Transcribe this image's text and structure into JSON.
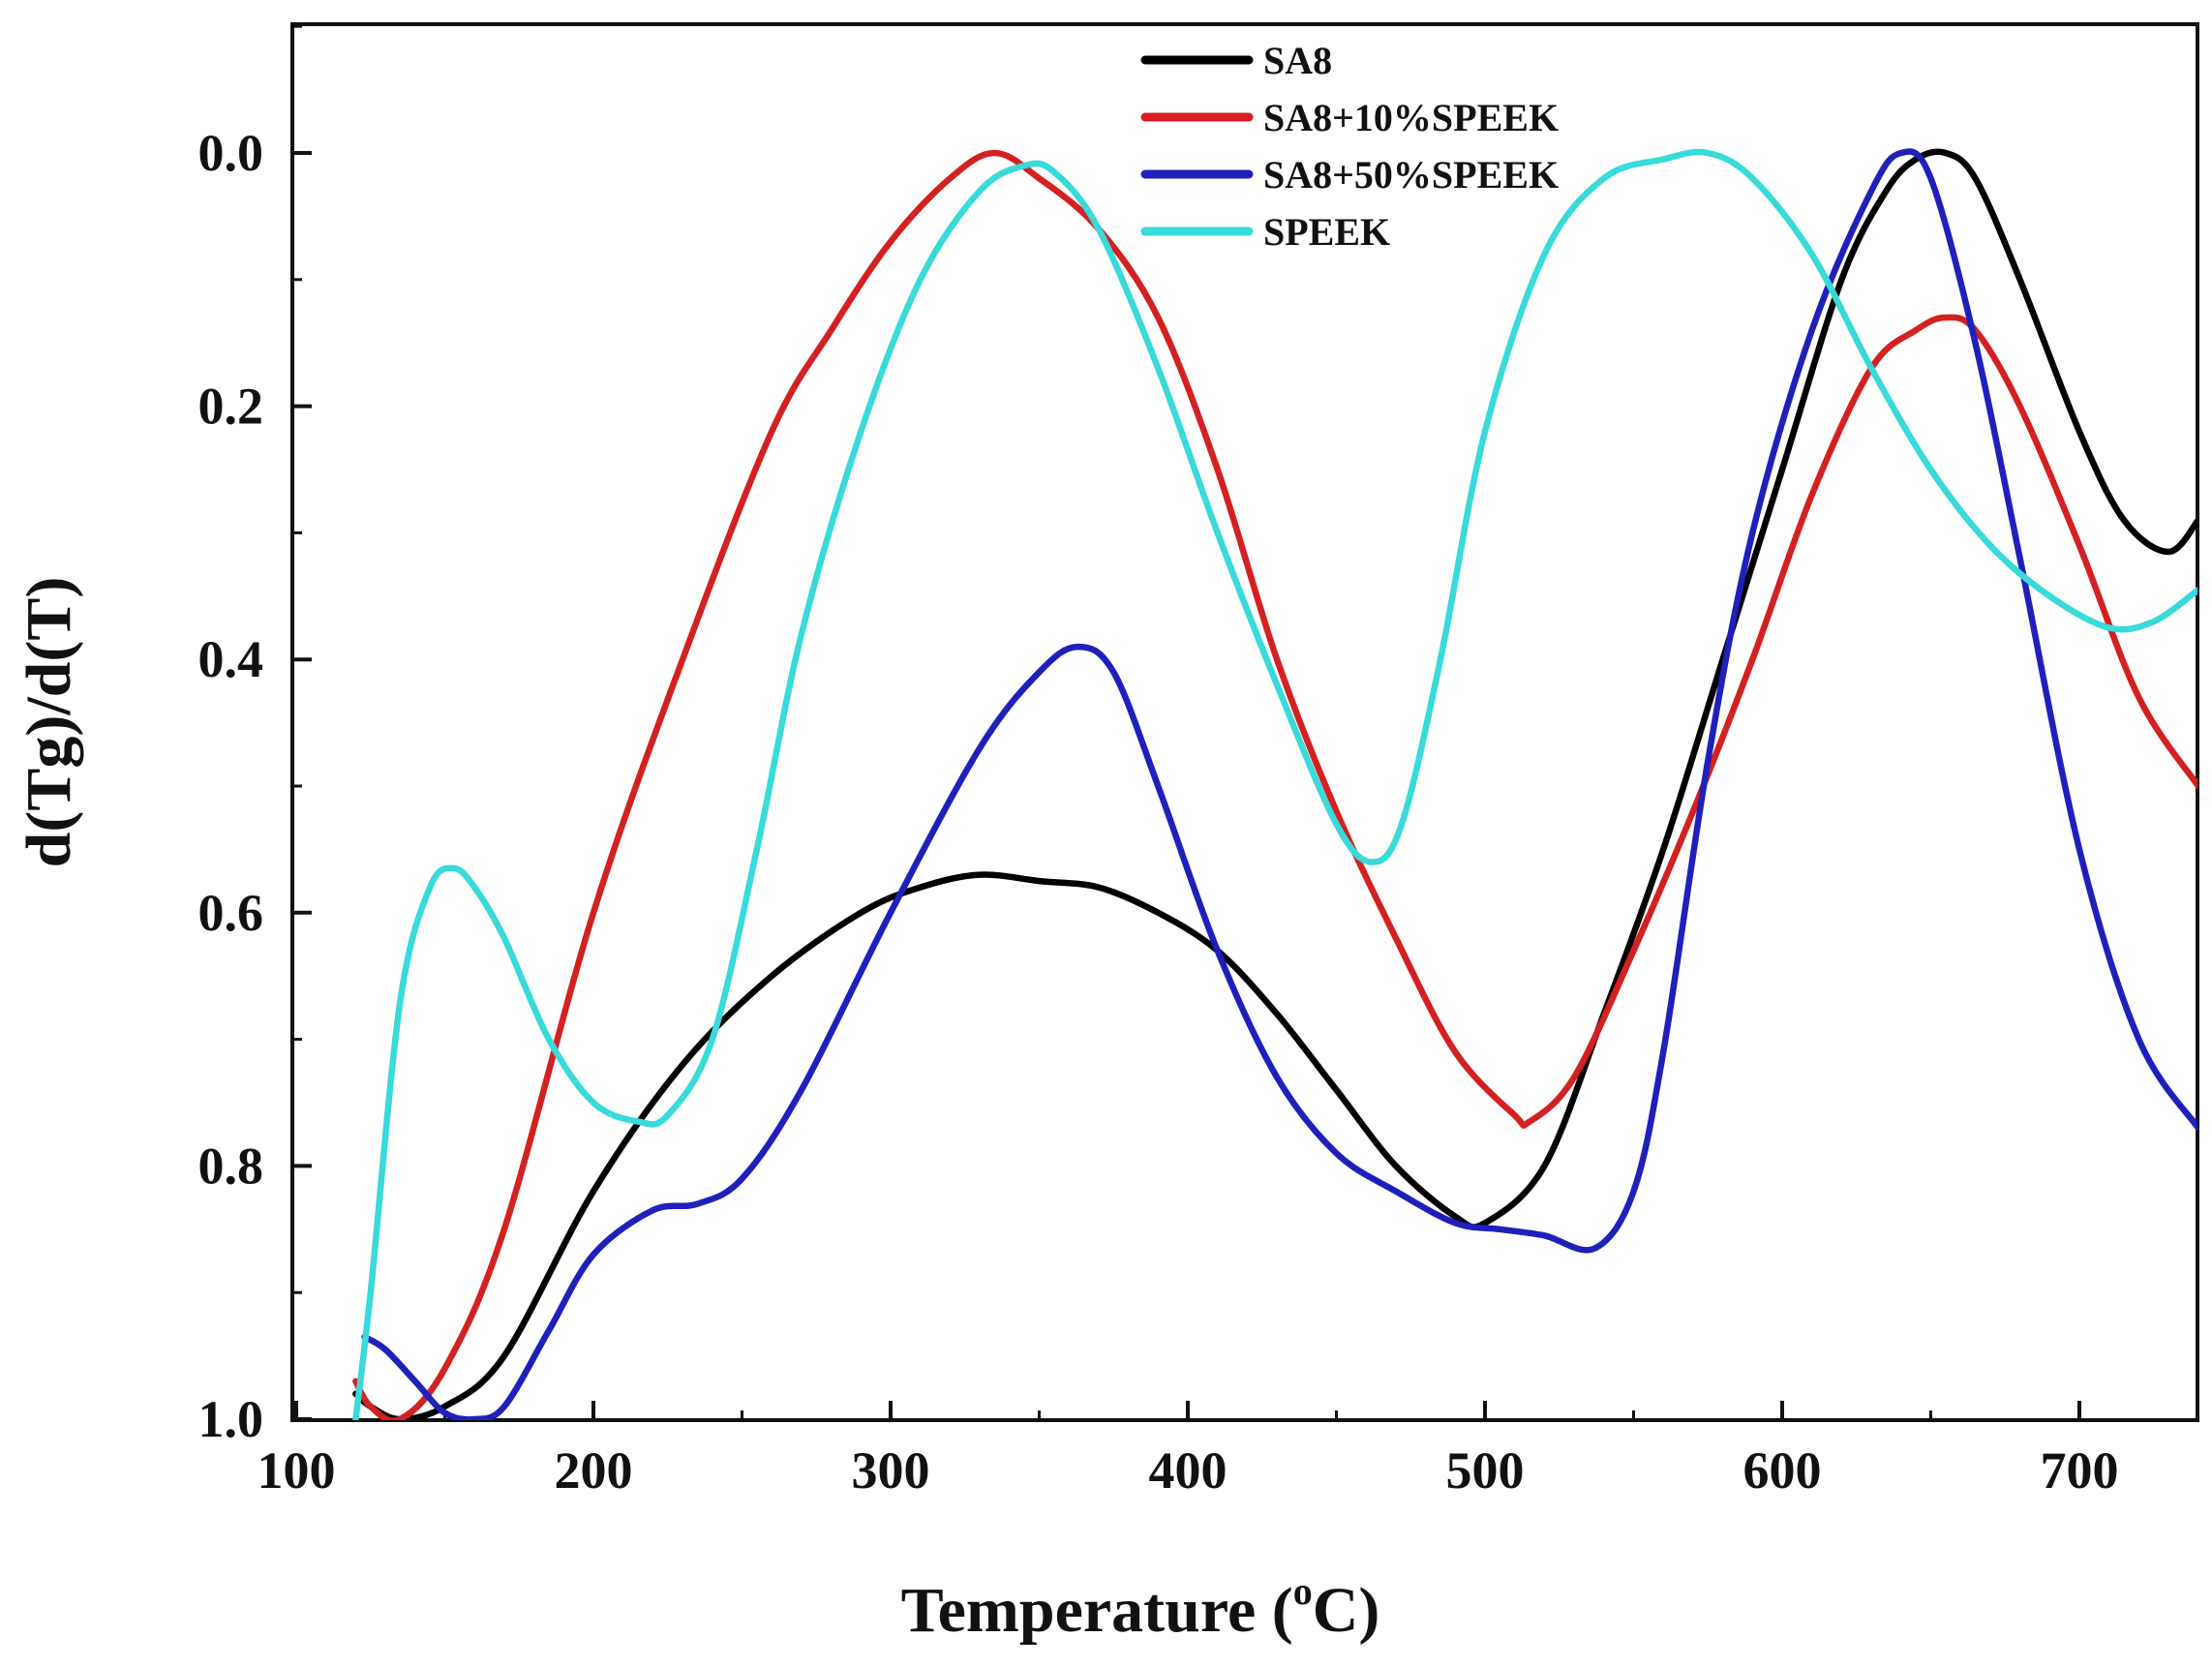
{
  "chart_data": {
    "type": "line",
    "title": "",
    "xlabel": "Temperature (°C)",
    "xlabel_main": "Temperature (",
    "xlabel_sup": "o",
    "xlabel_end": "C)",
    "ylabel": "d(Tg)/d(T)",
    "xlim": [
      100,
      740
    ],
    "ylim": [
      1.0,
      -0.1
    ],
    "y_inverted": true,
    "x_ticks": [
      100,
      200,
      300,
      400,
      500,
      600,
      700
    ],
    "x_tick_labels": [
      "100",
      "200",
      "300",
      "400",
      "500",
      "600",
      "700"
    ],
    "y_ticks": [
      0.0,
      0.2,
      0.4,
      0.6,
      0.8,
      1.0
    ],
    "y_tick_labels": [
      "0.0",
      "0.2",
      "0.4",
      "0.6",
      "0.8",
      "1.0"
    ],
    "grid": false,
    "legend_position": "top-center",
    "series": [
      {
        "name": "SA8",
        "color": "#000000",
        "x": [
          120,
          125,
          135,
          150,
          170,
          200,
          230,
          260,
          290,
          310,
          330,
          350,
          370,
          390,
          410,
          430,
          450,
          470,
          490,
          500,
          520,
          540,
          560,
          580,
          600,
          620,
          635,
          645,
          655,
          665,
          680,
          700,
          715,
          730,
          740
        ],
        "y": [
          0.98,
          0.99,
          1.0,
          0.99,
          0.95,
          0.82,
          0.72,
          0.65,
          0.6,
          0.58,
          0.57,
          0.575,
          0.58,
          0.6,
          0.63,
          0.68,
          0.74,
          0.8,
          0.84,
          0.845,
          0.8,
          0.68,
          0.55,
          0.4,
          0.25,
          0.1,
          0.03,
          0.005,
          0.0,
          0.02,
          0.1,
          0.22,
          0.29,
          0.315,
          0.29
        ]
      },
      {
        "name": "SA8+10%SPEEK",
        "color": "#d42020",
        "x": [
          120,
          125,
          135,
          150,
          170,
          200,
          230,
          260,
          280,
          300,
          320,
          335,
          350,
          370,
          390,
          410,
          430,
          450,
          470,
          490,
          510,
          515,
          530,
          550,
          570,
          590,
          610,
          630,
          645,
          655,
          665,
          680,
          700,
          720,
          740
        ],
        "y": [
          0.97,
          0.99,
          1.0,
          0.96,
          0.85,
          0.6,
          0.4,
          0.22,
          0.14,
          0.07,
          0.02,
          0.0,
          0.02,
          0.06,
          0.13,
          0.25,
          0.4,
          0.52,
          0.62,
          0.71,
          0.76,
          0.765,
          0.73,
          0.63,
          0.52,
          0.4,
          0.27,
          0.17,
          0.14,
          0.13,
          0.14,
          0.2,
          0.31,
          0.43,
          0.5
        ]
      },
      {
        "name": "SA8+50%SPEEK",
        "color": "#1f1fbb",
        "x": [
          123,
          130,
          140,
          150,
          160,
          170,
          185,
          200,
          220,
          235,
          250,
          270,
          300,
          330,
          350,
          363,
          375,
          390,
          410,
          430,
          450,
          470,
          490,
          505,
          520,
          537,
          550,
          560,
          575,
          590,
          610,
          630,
          640,
          650,
          665,
          680,
          700,
          720,
          740
        ],
        "y": [
          0.935,
          0.945,
          0.97,
          0.995,
          1.0,
          0.99,
          0.93,
          0.87,
          0.835,
          0.83,
          0.81,
          0.74,
          0.6,
          0.47,
          0.41,
          0.39,
          0.41,
          0.5,
          0.63,
          0.73,
          0.79,
          0.82,
          0.845,
          0.85,
          0.855,
          0.865,
          0.82,
          0.71,
          0.48,
          0.3,
          0.14,
          0.03,
          0.0,
          0.02,
          0.15,
          0.32,
          0.55,
          0.7,
          0.77
        ]
      },
      {
        "name": "SPEEK",
        "color": "#38dada",
        "x": [
          120,
          125,
          135,
          145,
          153,
          160,
          170,
          185,
          200,
          215,
          225,
          240,
          255,
          270,
          290,
          310,
          330,
          345,
          355,
          370,
          390,
          410,
          430,
          450,
          462,
          472,
          485,
          500,
          520,
          540,
          560,
          575,
          590,
          610,
          630,
          650,
          670,
          690,
          710,
          725,
          740
        ],
        "y": [
          1.0,
          0.9,
          0.67,
          0.58,
          0.565,
          0.58,
          0.62,
          0.7,
          0.75,
          0.765,
          0.76,
          0.7,
          0.55,
          0.38,
          0.22,
          0.1,
          0.03,
          0.01,
          0.015,
          0.06,
          0.17,
          0.3,
          0.42,
          0.53,
          0.56,
          0.53,
          0.4,
          0.22,
          0.08,
          0.02,
          0.005,
          0.0,
          0.02,
          0.08,
          0.17,
          0.25,
          0.31,
          0.35,
          0.375,
          0.37,
          0.345
        ]
      }
    ]
  }
}
